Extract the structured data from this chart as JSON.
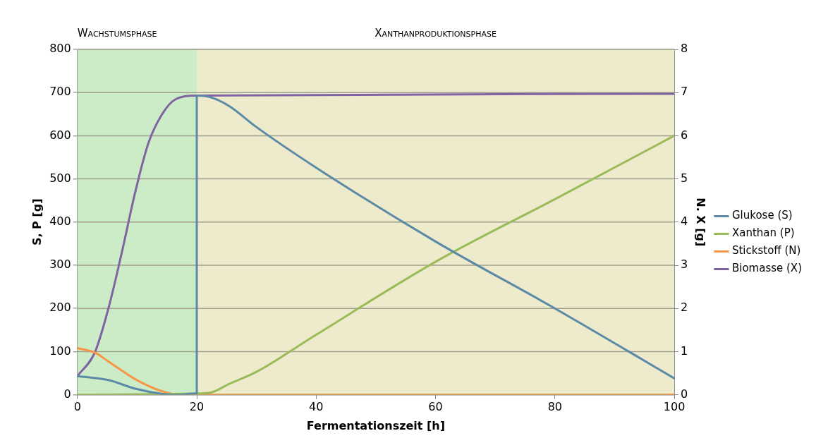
{
  "chart_data": {
    "type": "line",
    "xlabel": "Fermentationszeit [h]",
    "ylabel": "S, P [g]",
    "y2label": "N. X [g]",
    "xlim": [
      0,
      100
    ],
    "xticks": [
      0,
      20,
      40,
      60,
      80,
      100
    ],
    "ylim": [
      0,
      800
    ],
    "yticks": [
      0,
      100,
      200,
      300,
      400,
      500,
      600,
      700,
      800
    ],
    "y2lim": [
      0,
      8
    ],
    "y2ticks": [
      0,
      1,
      2,
      3,
      4,
      5,
      6,
      7,
      8
    ],
    "grid": "y",
    "legend": "right",
    "marker": "none",
    "line_style": "solid",
    "bands": [
      {
        "axis": "x",
        "from": 0,
        "to": 20,
        "label": "Wachstumsphase",
        "color": "#ccecc8"
      },
      {
        "axis": "x",
        "from": 20,
        "to": 100,
        "label": "Xanthanproduktionsphase",
        "color": "#eeebcd"
      }
    ],
    "series": [
      {
        "name": "Glukose (S)",
        "color": "#5b8aa6",
        "x": [
          0,
          5.2,
          9.7,
          14.2,
          16.5,
          20,
          20,
          22.3,
          25.4,
          30,
          40,
          60,
          80,
          100
        ],
        "values": [
          43,
          34,
          14,
          2,
          0,
          3,
          693,
          689,
          669,
          620,
          526,
          355,
          200,
          38
        ]
      },
      {
        "name": "Xanthan (P)",
        "color": "#9bbb59",
        "x": [
          0,
          10,
          20,
          22.3,
          25.4,
          30,
          40,
          60,
          80,
          100
        ],
        "values": [
          0,
          1,
          3,
          5,
          25,
          53,
          139,
          308,
          453,
          600
        ]
      },
      {
        "name": "Stickstoff (N)",
        "color": "#f79646",
        "axis": "y2",
        "x": [
          0,
          2.9,
          5.2,
          9.7,
          14.2,
          17,
          20,
          100
        ],
        "values": [
          1.08,
          0.98,
          0.77,
          0.36,
          0.08,
          0,
          0,
          0
        ]
      },
      {
        "name": "Biomasse (X)",
        "color": "#8064a2",
        "axis": "y2",
        "x": [
          0,
          2.95,
          5.2,
          7.5,
          9.7,
          11.9,
          14.2,
          16.4,
          20,
          100
        ],
        "values": [
          0.43,
          0.99,
          2.0,
          3.33,
          4.7,
          5.83,
          6.5,
          6.84,
          6.93,
          6.97
        ]
      }
    ]
  }
}
